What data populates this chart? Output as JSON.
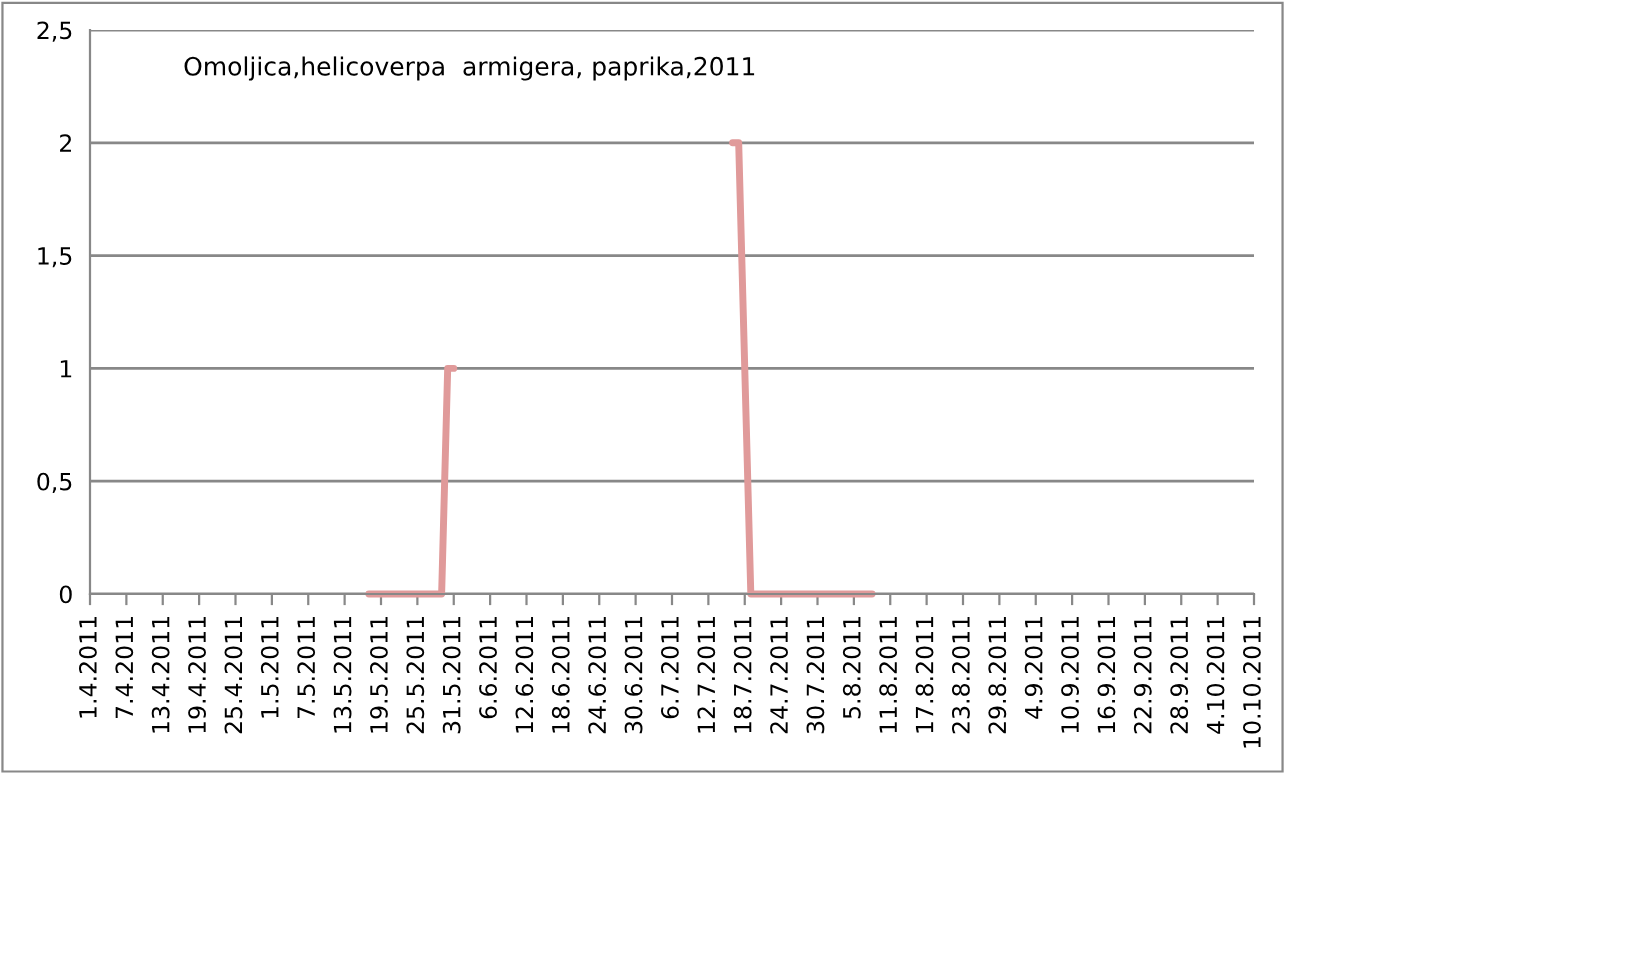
{
  "chart_data": {
    "type": "line",
    "title": "Omoljica,helicoverpa  armigera, paprika,2011",
    "x": [
      "2011-05-17",
      "2011-05-29",
      "2011-05-30",
      "2011-05-31",
      "2011-06-01",
      "2011-07-16",
      "2011-07-17",
      "2011-07-19",
      "2011-08-08"
    ],
    "series": [
      {
        "color": "#e09a9a",
        "values": [
          0,
          0,
          1,
          1,
          null,
          2,
          2,
          0,
          0
        ]
      }
    ],
    "xlim": [
      "2011-04-01",
      "2011-10-10"
    ],
    "xticks": [
      {
        "value": "2011-04-01",
        "label": "1.4.2011"
      },
      {
        "value": "2011-04-07",
        "label": "7.4.2011"
      },
      {
        "value": "2011-04-13",
        "label": "13.4.2011"
      },
      {
        "value": "2011-04-19",
        "label": "19.4.2011"
      },
      {
        "value": "2011-04-25",
        "label": "25.4.2011"
      },
      {
        "value": "2011-05-01",
        "label": "1.5.2011"
      },
      {
        "value": "2011-05-07",
        "label": "7.5.2011"
      },
      {
        "value": "2011-05-13",
        "label": "13.5.2011"
      },
      {
        "value": "2011-05-19",
        "label": "19.5.2011"
      },
      {
        "value": "2011-05-25",
        "label": "25.5.2011"
      },
      {
        "value": "2011-05-31",
        "label": "31.5.2011"
      },
      {
        "value": "2011-06-06",
        "label": "6.6.2011"
      },
      {
        "value": "2011-06-12",
        "label": "12.6.2011"
      },
      {
        "value": "2011-06-18",
        "label": "18.6.2011"
      },
      {
        "value": "2011-06-24",
        "label": "24.6.2011"
      },
      {
        "value": "2011-06-30",
        "label": "30.6.2011"
      },
      {
        "value": "2011-07-06",
        "label": "6.7.2011"
      },
      {
        "value": "2011-07-12",
        "label": "12.7.2011"
      },
      {
        "value": "2011-07-18",
        "label": "18.7.2011"
      },
      {
        "value": "2011-07-24",
        "label": "24.7.2011"
      },
      {
        "value": "2011-07-30",
        "label": "30.7.2011"
      },
      {
        "value": "2011-08-05",
        "label": "5.8.2011"
      },
      {
        "value": "2011-08-11",
        "label": "11.8.2011"
      },
      {
        "value": "2011-08-17",
        "label": "17.8.2011"
      },
      {
        "value": "2011-08-23",
        "label": "23.8.2011"
      },
      {
        "value": "2011-08-29",
        "label": "29.8.2011"
      },
      {
        "value": "2011-09-04",
        "label": "4.9.2011"
      },
      {
        "value": "2011-09-10",
        "label": "10.9.2011"
      },
      {
        "value": "2011-09-16",
        "label": "16.9.2011"
      },
      {
        "value": "2011-09-22",
        "label": "22.9.2011"
      },
      {
        "value": "2011-09-28",
        "label": "28.9.2011"
      },
      {
        "value": "2011-10-04",
        "label": "4.10.2011"
      },
      {
        "value": "2011-10-10",
        "label": "10.10.2011"
      }
    ],
    "ylim": [
      0,
      2.5
    ],
    "yticks": [
      0,
      {
        "value": 0.5,
        "label": "0,5"
      },
      1,
      {
        "value": 1.5,
        "label": "1,5"
      },
      2,
      {
        "value": 2.5,
        "label": "2,5"
      }
    ],
    "grid": "y",
    "marker": "none",
    "line_style": "solid"
  }
}
